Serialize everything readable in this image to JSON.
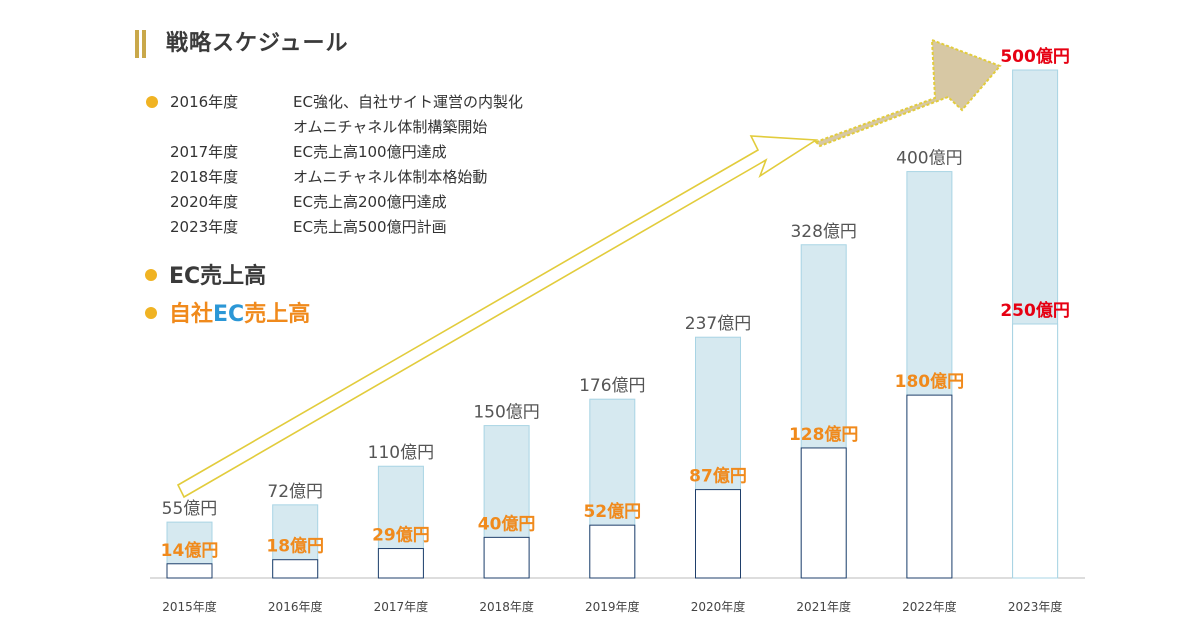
{
  "header": {
    "title": "戦略スケジュール"
  },
  "timeline": [
    {
      "year": "2016年度",
      "lines": [
        "EC強化、自社サイト運営の内製化",
        "オムニチャネル体制構築開始"
      ]
    },
    {
      "year": "2017年度",
      "lines": [
        "EC売上高100億円達成"
      ]
    },
    {
      "year": "2018年度",
      "lines": [
        "オムニチャネル体制本格始動"
      ]
    },
    {
      "year": "2020年度",
      "lines": [
        "EC売上高200億円達成"
      ]
    },
    {
      "year": "2023年度",
      "lines": [
        "EC売上高500億円計画"
      ]
    }
  ],
  "legend": {
    "total_label": "EC売上高",
    "own_prefix": "自社",
    "own_accent": "EC",
    "own_suffix": "売上高"
  },
  "colors": {
    "bar_total": "#d6e9f0",
    "bar_border": "#a8d4e4",
    "bar_own": "#ffffff",
    "bar_own_border": "#1f3f6b",
    "label_total": "#555555",
    "label_own": "#f08a1c",
    "label_highlight": "#e60012",
    "arrow": "#e2cc3c",
    "big_arrow": "#d7c8a4",
    "bullet": "#f0b323"
  },
  "chart_data": {
    "type": "bar",
    "title": "",
    "unit": "億円",
    "categories": [
      "2015年度",
      "2016年度",
      "2017年度",
      "2018年度",
      "2019年度",
      "2020年度",
      "2021年度",
      "2022年度",
      "2023年度"
    ],
    "series": [
      {
        "name": "EC売上高",
        "values": [
          55,
          72,
          110,
          150,
          176,
          237,
          328,
          400,
          500
        ]
      },
      {
        "name": "自社EC売上高",
        "values": [
          14,
          18,
          29,
          40,
          52,
          87,
          128,
          180,
          250
        ]
      }
    ],
    "total_labels": [
      "55億円",
      "72億円",
      "110億円",
      "150億円",
      "176億円",
      "237億円",
      "328億円",
      "400億円",
      "500億円"
    ],
    "own_labels": [
      "14億円",
      "18億円",
      "29億円",
      "40億円",
      "52億円",
      "87億円",
      "128億円",
      "180億円",
      "250億円"
    ],
    "plan_index": 8,
    "ylim": [
      0,
      500
    ]
  }
}
